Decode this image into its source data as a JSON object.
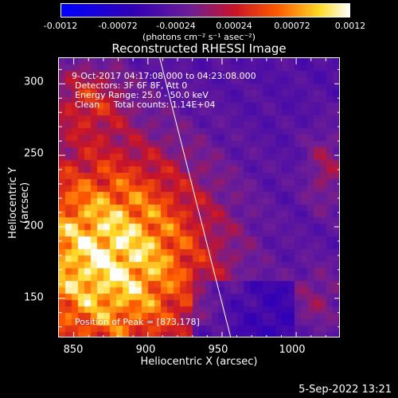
{
  "colorbar": {
    "tick_labels": [
      "-0.0012",
      "-0.00072",
      "-0.00024",
      "0.00024",
      "0.00072",
      "0.0012"
    ],
    "units_label": "(photons cm⁻² s⁻¹ asec⁻²)",
    "range": [
      -0.0012,
      0.0012
    ]
  },
  "title": "Reconstructed RHESSI Image",
  "info_lines": {
    "time": "9-Oct-2017 04:17:08.000 to 04:23:08.000",
    "detectors": "Detectors: 3F 6F 8F, Att 0",
    "energy": "Energy Range: 25.0 - 50.0 keV",
    "clean": "Clean     Total counts: 1.14E+04",
    "peak": "Position of Peak = [873,178]"
  },
  "axes": {
    "x_label": "Heliocentric X (arcsec)",
    "y_label": "Heliocentric Y (arcsec)",
    "x_ticks": [
      "850",
      "900",
      "950",
      "1000"
    ],
    "y_ticks": [
      "300",
      "250",
      "200",
      "150"
    ],
    "x_range": [
      840,
      1030
    ],
    "y_range": [
      122,
      318
    ]
  },
  "limb_line": {
    "x": [
      908,
      956
    ],
    "y": [
      318,
      122
    ]
  },
  "peak_position": [
    873,
    178
  ],
  "footer": {
    "date": "5-Sep-2022 13:21"
  }
}
